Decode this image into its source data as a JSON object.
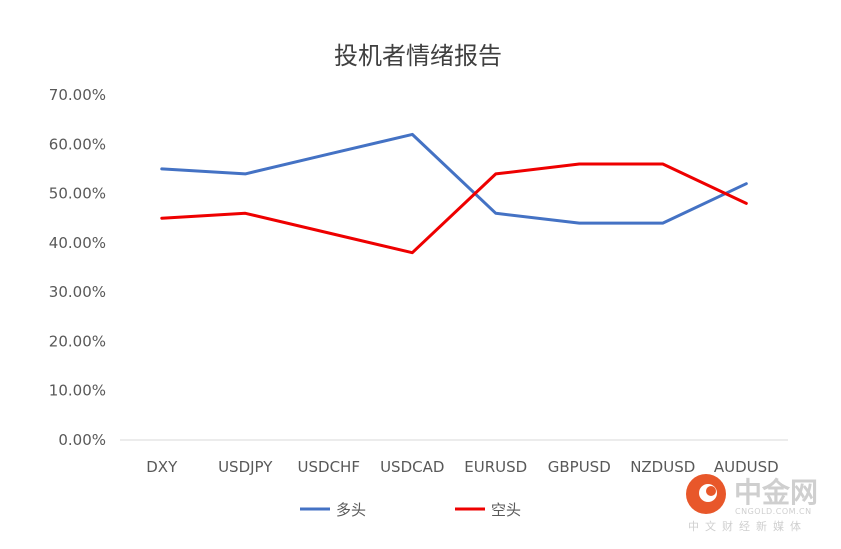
{
  "chart_data": {
    "type": "line",
    "title": "投机者情绪报告",
    "categories": [
      "DXY",
      "USDJPY",
      "USDCHF",
      "USDCAD",
      "EURUSD",
      "GBPUSD",
      "NZDUSD",
      "AUDUSD"
    ],
    "y_ticks": [
      "0.00%",
      "10.00%",
      "20.00%",
      "30.00%",
      "40.00%",
      "50.00%",
      "60.00%",
      "70.00%"
    ],
    "ylim": [
      0,
      70
    ],
    "grid": false,
    "legend_position": "bottom",
    "series": [
      {
        "name": "多头",
        "color": "#4472C4",
        "values": [
          55,
          54,
          58,
          62,
          46,
          44,
          44,
          52
        ]
      },
      {
        "name": "空头",
        "color": "#EE0000",
        "values": [
          45,
          46,
          42,
          38,
          54,
          56,
          56,
          48
        ]
      }
    ]
  },
  "watermark": {
    "name": "中金网",
    "domain": "CNGOLD.COM.CN",
    "tagline": "中文财经新媒体",
    "logo_color": "#E8572A",
    "text_color": "#cfcfcf"
  }
}
